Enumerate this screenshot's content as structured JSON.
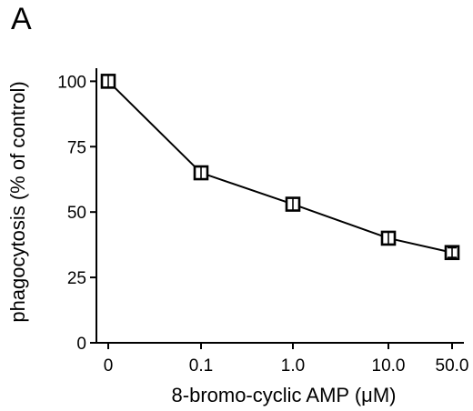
{
  "chart_data": {
    "type": "line",
    "panel_label": "A",
    "xlabel": "8-bromo-cyclic AMP (μM)",
    "ylabel": "phagocytosis (% of control)",
    "categories": [
      "0",
      "0.1",
      "1.0",
      "10.0",
      "50.0"
    ],
    "values": [
      100,
      65,
      53,
      40,
      34.5
    ],
    "errors": [
      2,
      2,
      2,
      2,
      1.5
    ],
    "ylim": [
      0,
      105
    ],
    "yticks": [
      0,
      25,
      50,
      75,
      100
    ],
    "marker": "open-square",
    "grid": false,
    "legend": "none"
  }
}
